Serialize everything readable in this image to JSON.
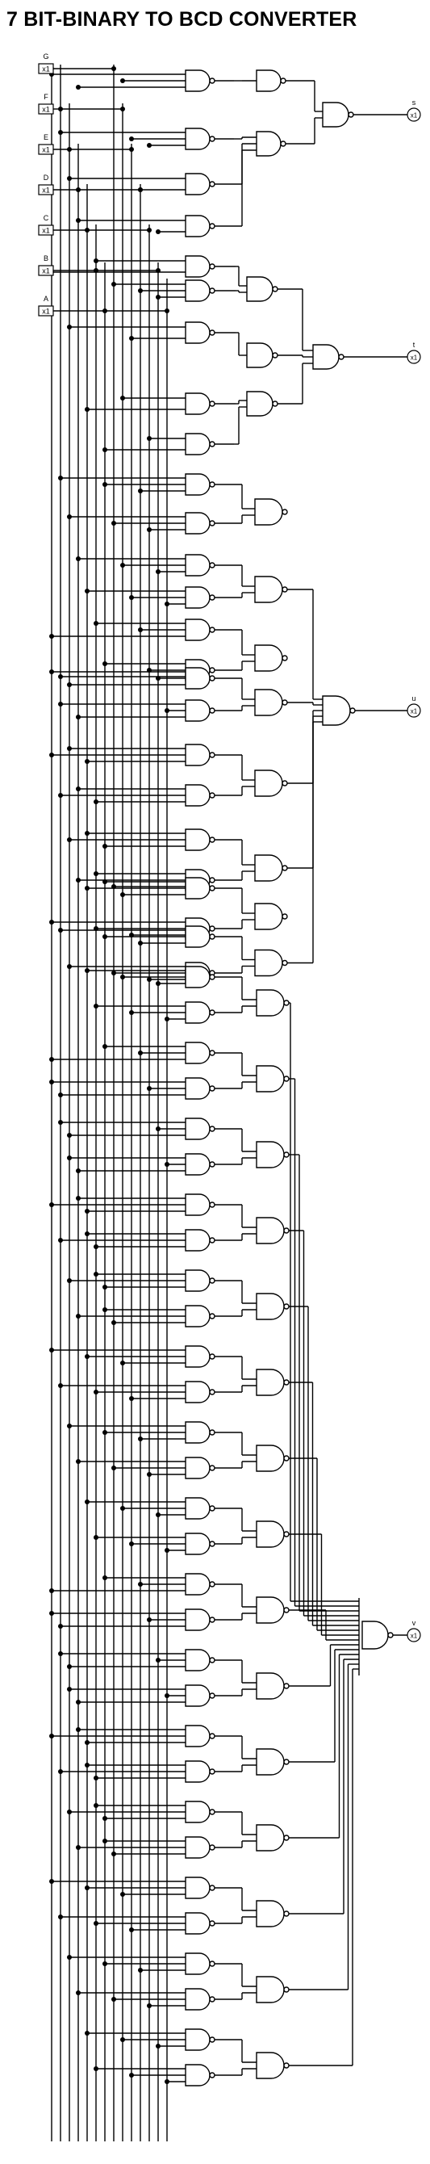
{
  "title": "7 BIT-BINARY TO BCD CONVERTER",
  "inputs": [
    {
      "name": "G",
      "value": "x1"
    },
    {
      "name": "F",
      "value": "x1"
    },
    {
      "name": "E",
      "value": "x1"
    },
    {
      "name": "D",
      "value": "x1"
    },
    {
      "name": "C",
      "value": "x1"
    },
    {
      "name": "B",
      "value": "x1"
    },
    {
      "name": "A",
      "value": "x1"
    }
  ],
  "outputs": [
    {
      "name": "s",
      "value": "x1"
    },
    {
      "name": "t",
      "value": "x1"
    },
    {
      "name": "u",
      "value": "x1"
    },
    {
      "name": "v",
      "value": "x1"
    }
  ],
  "gate_type": "NAND",
  "colors": {
    "wire": "#000000",
    "background": "#ffffff",
    "junction": "#000000"
  }
}
